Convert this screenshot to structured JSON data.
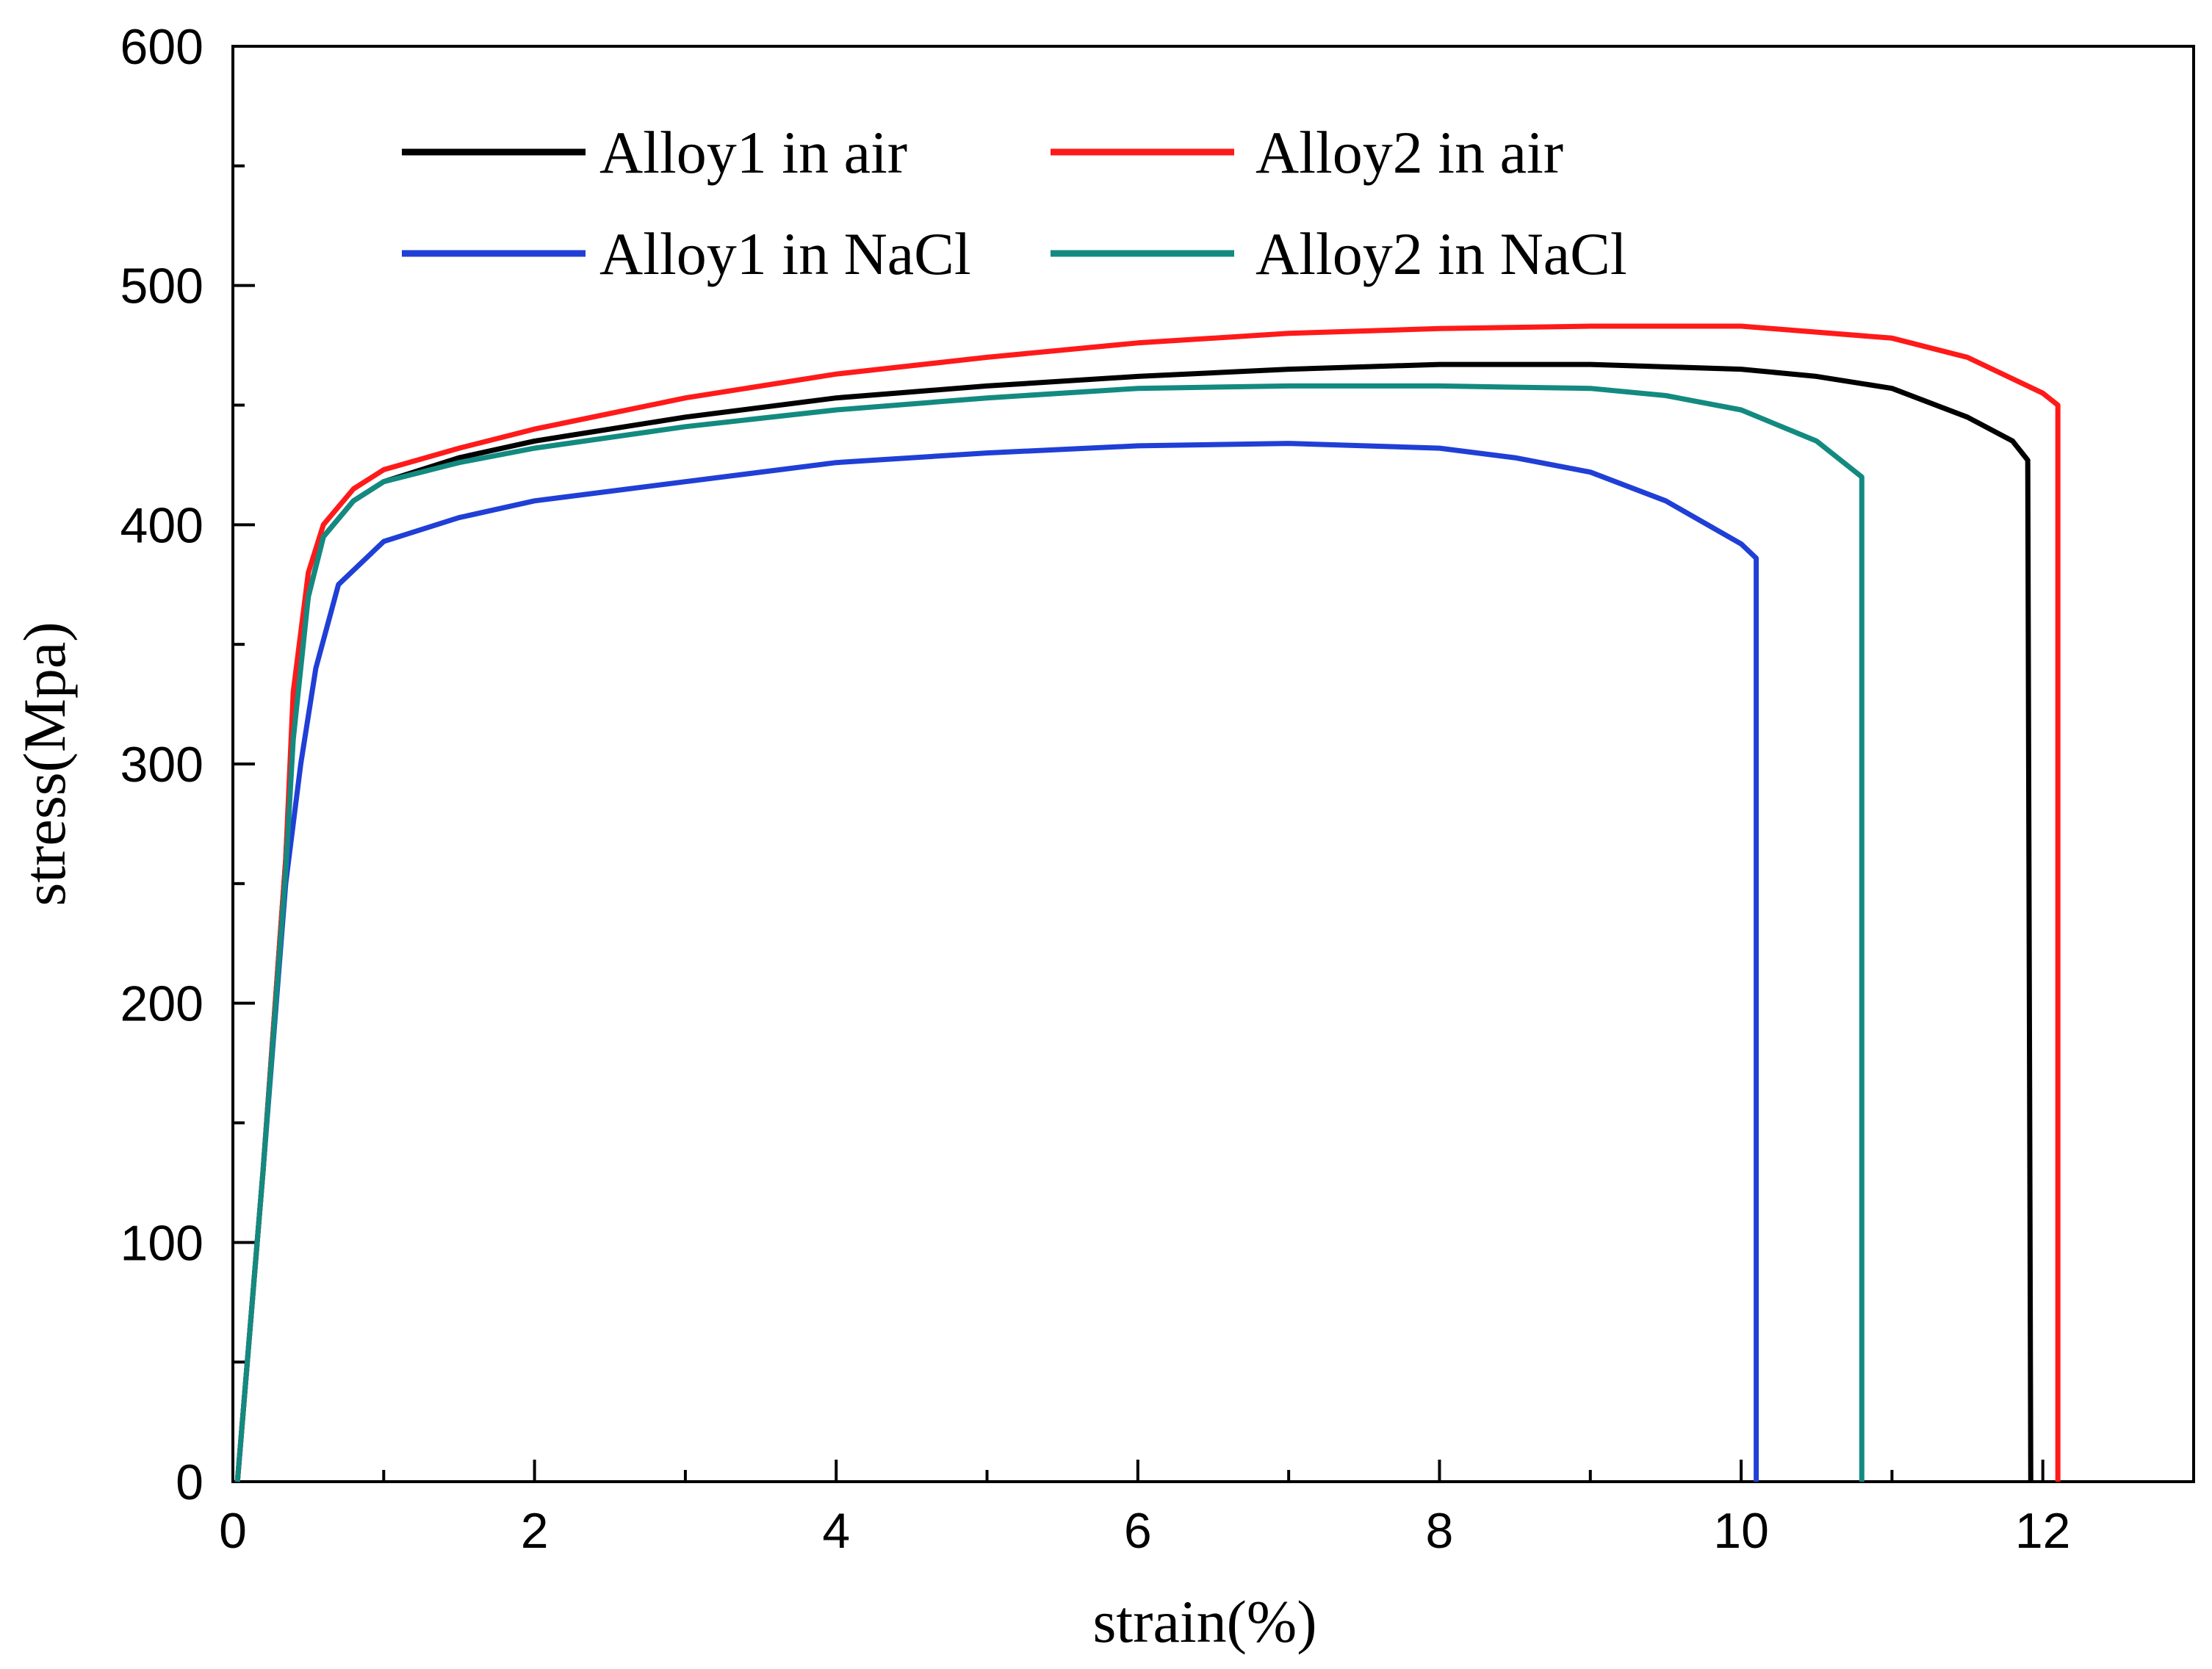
{
  "chart_data": {
    "type": "line",
    "x_label": "strain(%)",
    "y_label": "stress(Mpa)",
    "xlim": [
      0,
      13
    ],
    "xticks": [
      0,
      2,
      4,
      6,
      8,
      10,
      12
    ],
    "ylim": [
      0,
      600
    ],
    "yticks": [
      0,
      100,
      200,
      300,
      400,
      500,
      600
    ],
    "series": [
      {
        "name": "Alloy1 in air",
        "color": "#000000",
        "x": [
          0.03,
          0.2,
          0.35,
          0.4,
          0.5,
          0.6,
          0.8,
          1,
          1.5,
          2,
          3,
          4,
          5,
          6,
          7,
          8,
          9,
          10,
          10.5,
          11,
          11.5,
          11.8,
          11.9,
          11.92
        ],
        "values": [
          0,
          130,
          260,
          320,
          370,
          395,
          410,
          418,
          428,
          435,
          445,
          453,
          458,
          462,
          465,
          467,
          467,
          465,
          462,
          457,
          445,
          435,
          427,
          0
        ]
      },
      {
        "name": "Alloy1 in NaCl",
        "color": "#1f3fd6",
        "x": [
          0.03,
          0.2,
          0.35,
          0.45,
          0.55,
          0.7,
          1,
          1.5,
          2,
          3,
          4,
          5,
          6,
          7,
          8,
          8.5,
          9,
          9.5,
          10,
          10.1,
          10.1
        ],
        "values": [
          0,
          130,
          250,
          300,
          340,
          375,
          393,
          403,
          410,
          418,
          426,
          430,
          433,
          434,
          432,
          428,
          422,
          410,
          392,
          386,
          0
        ]
      },
      {
        "name": "Alloy2 in air",
        "color": "#ff1a1a",
        "x": [
          0.03,
          0.2,
          0.35,
          0.4,
          0.5,
          0.6,
          0.8,
          1,
          1.5,
          2,
          3,
          4,
          5,
          6,
          7,
          8,
          9,
          10,
          11,
          11.5,
          12,
          12.1,
          12.1
        ],
        "values": [
          0,
          130,
          260,
          330,
          380,
          400,
          415,
          423,
          432,
          440,
          453,
          463,
          470,
          476,
          480,
          482,
          483,
          483,
          478,
          470,
          455,
          450,
          0
        ]
      },
      {
        "name": "Alloy2 in NaCl",
        "color": "#138a80",
        "x": [
          0.03,
          0.2,
          0.35,
          0.4,
          0.5,
          0.6,
          0.8,
          1,
          1.5,
          2,
          3,
          4,
          5,
          6,
          7,
          8,
          9,
          9.5,
          10,
          10.5,
          10.8,
          10.8
        ],
        "values": [
          0,
          130,
          255,
          310,
          370,
          395,
          410,
          418,
          426,
          432,
          441,
          448,
          453,
          457,
          458,
          458,
          457,
          454,
          448,
          435,
          420,
          0
        ]
      }
    ]
  }
}
